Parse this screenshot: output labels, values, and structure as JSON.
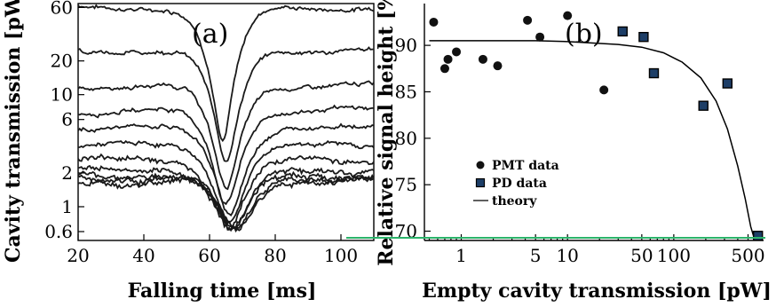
{
  "chart_data": [
    {
      "type": "line",
      "panel_label": "(a)",
      "xlabel": "Falling time [ms]",
      "ylabel": "Cavity transmission [pW]",
      "xlim": [
        20,
        110
      ],
      "ylim": [
        0.5,
        65
      ],
      "y_scale": "log",
      "x_ticks": [
        20,
        40,
        60,
        80,
        100
      ],
      "y_ticks": [
        0.6,
        1,
        2,
        6,
        10,
        20,
        60
      ],
      "series": [
        {
          "baseline": 60,
          "dip_center": 64,
          "dip_width": 9,
          "depth": 0.94
        },
        {
          "baseline": 25,
          "dip_center": 65,
          "dip_width": 9,
          "depth": 0.9
        },
        {
          "baseline": 12,
          "dip_center": 65,
          "dip_width": 9,
          "depth": 0.88
        },
        {
          "baseline": 7.2,
          "dip_center": 65,
          "dip_width": 9,
          "depth": 0.85
        },
        {
          "baseline": 5.0,
          "dip_center": 66,
          "dip_width": 9,
          "depth": 0.82
        },
        {
          "baseline": 3.5,
          "dip_center": 66,
          "dip_width": 9,
          "depth": 0.78
        },
        {
          "baseline": 2.6,
          "dip_center": 66,
          "dip_width": 9,
          "depth": 0.74
        },
        {
          "baseline": 2.1,
          "dip_center": 67,
          "dip_width": 9,
          "depth": 0.7
        },
        {
          "baseline": 1.9,
          "dip_center": 67,
          "dip_width": 9,
          "depth": 0.66
        },
        {
          "baseline": 1.8,
          "dip_center": 68,
          "dip_width": 9,
          "depth": 0.66
        },
        {
          "baseline": 1.7,
          "dip_center": 68,
          "dip_width": 9,
          "depth": 0.64
        }
      ]
    },
    {
      "type": "scatter",
      "panel_label": "(b)",
      "xlabel": "Empty cavity transmission [pW]",
      "ylabel": "Relative signal height [%]",
      "x_scale": "log",
      "xlim": [
        0.45,
        700
      ],
      "ylim": [
        69,
        94.5
      ],
      "x_ticks": [
        1,
        5,
        10,
        50,
        100,
        500
      ],
      "y_ticks": [
        70,
        75,
        80,
        85,
        90
      ],
      "legend": {
        "position": "lower-left",
        "entries": [
          "PMT data",
          "PD data",
          "theory"
        ]
      },
      "series": [
        {
          "name": "PMT data",
          "marker": "circle",
          "x": [
            0.55,
            0.7,
            0.75,
            0.9,
            1.6,
            2.2,
            4.2,
            5.5,
            10,
            22
          ],
          "y": [
            92.5,
            87.5,
            88.5,
            89.3,
            88.5,
            87.8,
            92.7,
            90.9,
            93.2,
            85.2
          ]
        },
        {
          "name": "PD data",
          "marker": "square",
          "x": [
            33,
            52,
            65,
            190,
            320,
            620
          ],
          "y": [
            91.5,
            90.9,
            87.0,
            83.5,
            85.9,
            69.5
          ]
        },
        {
          "name": "theory",
          "marker": "line",
          "x": [
            0.5,
            1,
            5,
            10,
            30,
            50,
            80,
            120,
            180,
            250,
            320,
            400,
            470,
            530,
            580
          ],
          "y": [
            90.5,
            90.5,
            90.5,
            90.4,
            90.1,
            89.8,
            89.2,
            88.2,
            86.5,
            84.0,
            81.0,
            77.0,
            73.5,
            70.5,
            69.0
          ]
        }
      ]
    }
  ],
  "colors": {
    "trace": "#1a1a1a",
    "marker_fill": "#111111",
    "square_fill": "#1d3e67",
    "guide": "#2bb36a"
  }
}
